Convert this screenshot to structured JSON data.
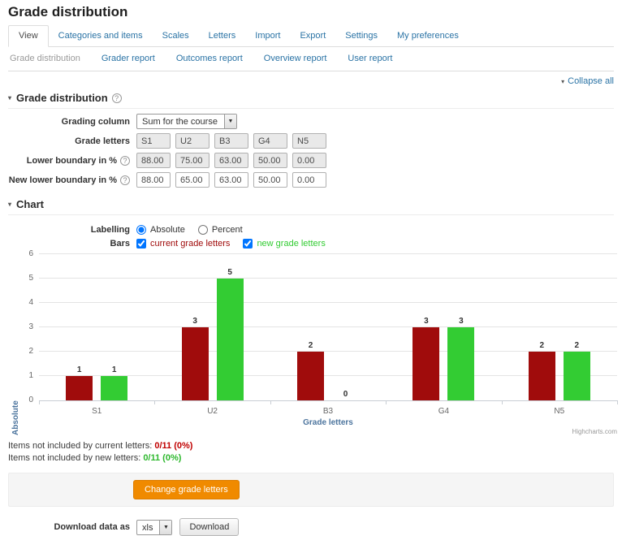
{
  "icons": {
    "collapse_triangle": "▾",
    "select_arrow": "▼",
    "help": "?"
  },
  "page": {
    "title": "Grade distribution",
    "collapse_all": "Collapse all"
  },
  "tabs": {
    "items": [
      {
        "label": "View",
        "active": true
      },
      {
        "label": "Categories and items",
        "active": false
      },
      {
        "label": "Scales",
        "active": false
      },
      {
        "label": "Letters",
        "active": false
      },
      {
        "label": "Import",
        "active": false
      },
      {
        "label": "Export",
        "active": false
      },
      {
        "label": "Settings",
        "active": false
      },
      {
        "label": "My preferences",
        "active": false
      }
    ]
  },
  "subnav": {
    "items": [
      {
        "label": "Grade distribution",
        "current": true
      },
      {
        "label": "Grader report",
        "current": false
      },
      {
        "label": "Outcomes report",
        "current": false
      },
      {
        "label": "Overview report",
        "current": false
      },
      {
        "label": "User report",
        "current": false
      }
    ]
  },
  "sections": {
    "grade_distribution": {
      "title": "Grade distribution"
    },
    "chart": {
      "title": "Chart"
    }
  },
  "form": {
    "grading_column": {
      "label": "Grading column",
      "value": "Sum for the course"
    },
    "grade_letters": {
      "label": "Grade letters",
      "values": [
        "S1",
        "U2",
        "B3",
        "G4",
        "N5"
      ]
    },
    "lower_boundary": {
      "label": "Lower boundary in %",
      "values": [
        "88.00",
        "75.00",
        "63.00",
        "50.00",
        "0.00"
      ]
    },
    "new_lower_boundary": {
      "label": "New lower boundary in %",
      "values": [
        "88.00",
        "65.00",
        "63.00",
        "50.00",
        "0.00"
      ]
    }
  },
  "chart_controls": {
    "labelling_label": "Labelling",
    "options": [
      {
        "label": "Absolute",
        "selected": true
      },
      {
        "label": "Percent",
        "selected": false
      }
    ],
    "bars_label": "Bars",
    "series_toggles": [
      {
        "label": "current grade letters",
        "color": "#a00c0c",
        "checked": true
      },
      {
        "label": "new grade letters",
        "color": "#33cc33",
        "checked": true
      }
    ]
  },
  "chart_data": {
    "type": "bar",
    "categories": [
      "S1",
      "U2",
      "B3",
      "G4",
      "N5"
    ],
    "series": [
      {
        "name": "current grade letters",
        "color": "#a00c0c",
        "values": [
          1,
          3,
          2,
          3,
          2
        ]
      },
      {
        "name": "new grade letters",
        "color": "#33cc33",
        "values": [
          1,
          5,
          0,
          3,
          2
        ]
      }
    ],
    "xlabel": "Grade letters",
    "ylabel": "Absolute",
    "ylim": [
      0,
      6
    ],
    "yticks": [
      0,
      1,
      2,
      3,
      4,
      5,
      6
    ],
    "grid": true,
    "legend_position": "none",
    "credits": "Highcharts.com"
  },
  "summary": {
    "current": {
      "prefix": "Items not included by current letters:",
      "value": "0/11 (0%)"
    },
    "new": {
      "prefix": "Items not included by new letters:",
      "value": "0/11 (0%)"
    }
  },
  "actions": {
    "change_button": "Change grade letters"
  },
  "download": {
    "label": "Download data as",
    "format": "xls",
    "button": "Download"
  }
}
